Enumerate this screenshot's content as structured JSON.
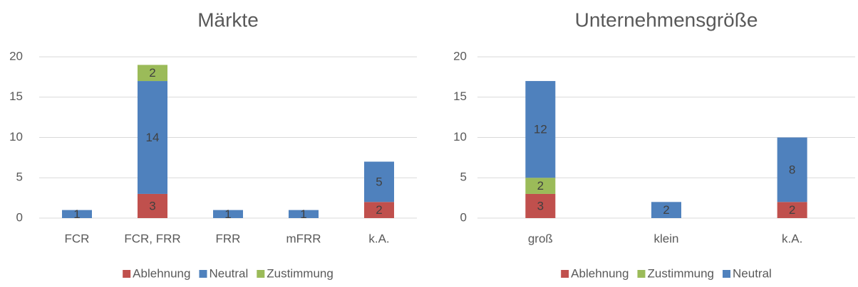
{
  "chart_data": [
    {
      "type": "stacked_bar",
      "title": "Märkte",
      "categories": [
        "FCR",
        "FCR, FRR",
        "FRR",
        "mFRR",
        "k.A."
      ],
      "series": [
        {
          "name": "Ablehnung",
          "color": "#c0504d",
          "values": [
            null,
            3,
            null,
            null,
            2
          ]
        },
        {
          "name": "Neutral",
          "color": "#4f81bd",
          "values": [
            1,
            14,
            1,
            1,
            5
          ]
        },
        {
          "name": "Zustimmung",
          "color": "#9bbb59",
          "values": [
            null,
            2,
            null,
            null,
            null
          ]
        }
      ],
      "ylim": [
        0,
        20
      ],
      "yticks": [
        0,
        5,
        10,
        15,
        20
      ],
      "grid": true,
      "legend": "bottom"
    },
    {
      "type": "stacked_bar",
      "title": "Unternehmensgröße",
      "categories": [
        "groß",
        "klein",
        "k.A."
      ],
      "series": [
        {
          "name": "Ablehnung",
          "color": "#c0504d",
          "values": [
            3,
            null,
            2
          ]
        },
        {
          "name": "Zustimmung",
          "color": "#9bbb59",
          "values": [
            2,
            null,
            null
          ]
        },
        {
          "name": "Neutral",
          "color": "#4f81bd",
          "values": [
            12,
            2,
            8
          ]
        }
      ],
      "ylim": [
        0,
        20
      ],
      "yticks": [
        0,
        5,
        10,
        15,
        20
      ],
      "grid": true,
      "legend": "bottom"
    }
  ]
}
